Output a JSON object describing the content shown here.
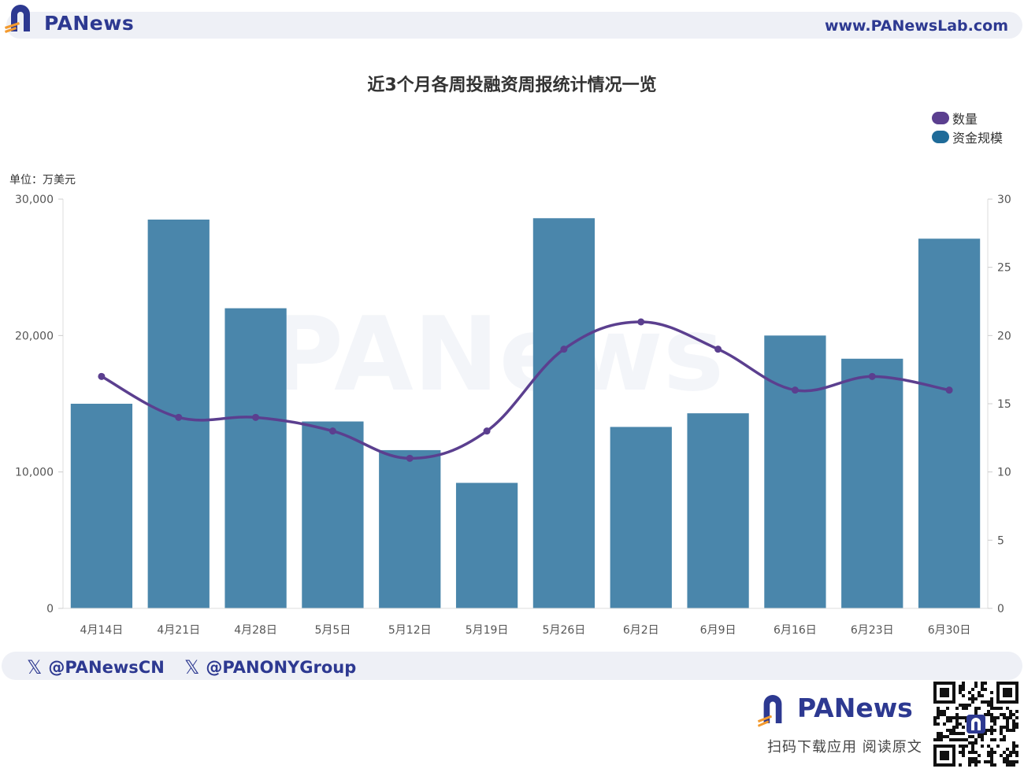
{
  "header": {
    "brand": "PANews",
    "url": "www.PANewsLab.com"
  },
  "footer": {
    "social": [
      "@PANewsCN",
      "@PANONYGroup"
    ],
    "brand": "PANews",
    "caption": "扫码下载应用  阅读原文",
    "icon": "x-logo-icon"
  },
  "watermark": "PANews",
  "colors": {
    "bar": "#4a86ab",
    "line": "#5b3f8f",
    "brand": "#2d3991",
    "accent_orange": "#f39a2e"
  },
  "chart_data": {
    "type": "bar",
    "title": "近3个月各周投融资周报统计情况一览",
    "unit_label": "单位：万美元",
    "categories": [
      "4月14日",
      "4月21日",
      "4月28日",
      "5月5日",
      "5月12日",
      "5月19日",
      "5月26日",
      "6月2日",
      "6月9日",
      "6月16日",
      "6月23日",
      "6月30日"
    ],
    "legend": {
      "placement": "top-right",
      "entries": [
        {
          "label": "数量",
          "color": "#5b3f8f"
        },
        {
          "label": "资金规模",
          "color": "#1f6b99"
        }
      ]
    },
    "series": [
      {
        "name": "资金规模",
        "type": "bar",
        "axis": "left",
        "values": [
          15000,
          28500,
          22000,
          13700,
          11600,
          9200,
          28600,
          13300,
          14300,
          20000,
          18300,
          27100
        ]
      },
      {
        "name": "数量",
        "type": "line",
        "axis": "right",
        "values": [
          17,
          14,
          14,
          13,
          11,
          13,
          19,
          21,
          19,
          16,
          17,
          16
        ]
      }
    ],
    "y_left": {
      "min": 0,
      "max": 30000,
      "ticks": [
        "0",
        "10,000",
        "20,000",
        "30,000"
      ],
      "tick_values": [
        0,
        10000,
        20000,
        30000
      ]
    },
    "y_right": {
      "min": 0,
      "max": 30,
      "ticks": [
        "0",
        "5",
        "10",
        "15",
        "20",
        "25",
        "30"
      ],
      "tick_values": [
        0,
        5,
        10,
        15,
        20,
        25,
        30
      ]
    },
    "grid": false
  }
}
